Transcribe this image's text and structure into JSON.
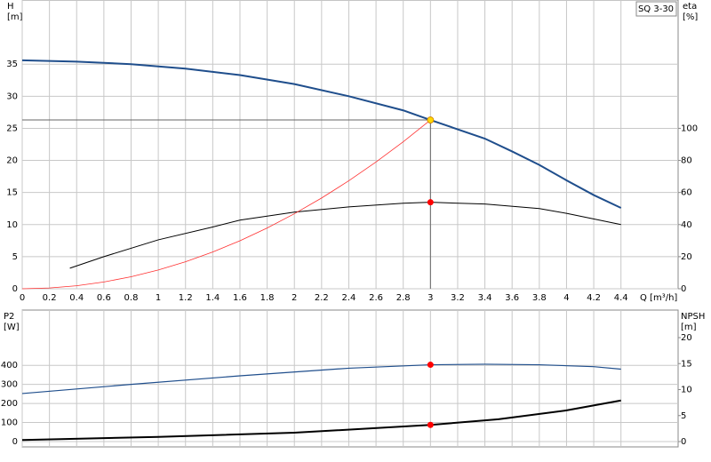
{
  "chart_data": [
    {
      "type": "line",
      "ylabel": "H",
      "yunit": "[m]",
      "y2label": "eta",
      "y2unit": "[%]",
      "model": "SQ 3-30",
      "xlabel": "Q [m³/h]",
      "xlim": [
        0,
        4.82
      ],
      "xticks": [
        0,
        0.2,
        0.4,
        0.6,
        0.8,
        1.0,
        1.2,
        1.4,
        1.6,
        1.8,
        2.0,
        2.2,
        2.4,
        2.6,
        2.8,
        3.0,
        3.2,
        3.4,
        3.6,
        3.8,
        4.0,
        4.2,
        4.4
      ],
      "ylim": [
        0,
        45
      ],
      "yticks": [
        0,
        5,
        10,
        15,
        20,
        25,
        30,
        35
      ],
      "y2lim": [
        0,
        180
      ],
      "y2ticks": [
        0,
        20,
        40,
        60,
        80,
        100
      ],
      "grid": true,
      "series": [
        {
          "color": "#1f4e8c",
          "width": 2,
          "x": [
            0,
            0.4,
            0.8,
            1.2,
            1.6,
            2.0,
            2.4,
            2.8,
            3.0,
            3.4,
            3.6,
            3.8,
            4.0,
            4.2,
            4.4
          ],
          "values": [
            35.6,
            35.4,
            35.0,
            34.3,
            33.3,
            31.9,
            30.0,
            27.8,
            26.3,
            23.4,
            21.4,
            19.3,
            16.9,
            14.6,
            12.6
          ]
        },
        {
          "color": "#000000",
          "width": 1,
          "axis": "y2",
          "x": [
            0.35,
            0.6,
            1.0,
            1.4,
            1.6,
            2.0,
            2.4,
            2.8,
            3.0,
            3.4,
            3.8,
            4.0,
            4.4
          ],
          "values": [
            12.8,
            20,
            30.5,
            38.5,
            42.8,
            47.8,
            51,
            53.3,
            53.9,
            52.8,
            50,
            47,
            40
          ]
        },
        {
          "color": "#ff3030",
          "width": 0.8,
          "x": [
            0,
            0.2,
            0.4,
            0.6,
            0.8,
            1.0,
            1.2,
            1.4,
            1.6,
            1.8,
            2.0,
            2.2,
            2.4,
            2.6,
            2.8,
            3.0
          ],
          "values": [
            0,
            0.12,
            0.47,
            1.05,
            1.87,
            2.92,
            4.21,
            5.73,
            7.48,
            9.47,
            11.69,
            14.14,
            16.83,
            19.75,
            22.91,
            26.3
          ]
        }
      ],
      "markers": [
        {
          "color": "#ffd700",
          "axis": "y",
          "x": 3.0,
          "y": 26.3,
          "guides": true
        },
        {
          "color": "#ff0000",
          "axis": "y2",
          "x": 3.0,
          "y": 53.9
        }
      ]
    },
    {
      "type": "line",
      "ylabel": "P2",
      "yunit": "[W]",
      "y2label": "NPSH",
      "y2unit": "[m]",
      "xlim": [
        0,
        4.82
      ],
      "xticks": [
        0,
        0.2,
        0.4,
        0.6,
        0.8,
        1.0,
        1.2,
        1.4,
        1.6,
        1.8,
        2.0,
        2.2,
        2.4,
        2.6,
        2.8,
        3.0,
        3.2,
        3.4,
        3.6,
        3.8,
        4.0,
        4.2,
        4.4
      ],
      "ylim": [
        0,
        690
      ],
      "yticks": [
        0,
        100,
        200,
        300,
        400
      ],
      "y2lim": [
        0,
        25.3
      ],
      "y2ticks": [
        0,
        5,
        10,
        15,
        20
      ],
      "grid": true,
      "series": [
        {
          "color": "#1f4e8c",
          "width": 1.2,
          "x": [
            0,
            0.8,
            1.6,
            2.4,
            3.0,
            3.4,
            3.8,
            4.2,
            4.4
          ],
          "values": [
            252,
            300,
            345,
            385,
            403,
            406,
            403,
            393,
            380
          ]
        },
        {
          "color": "#000000",
          "width": 2,
          "axis": "y2",
          "x": [
            0,
            1.0,
            2.0,
            3.0,
            3.5,
            4.0,
            4.4
          ],
          "values": [
            0.3,
            0.9,
            1.7,
            3.2,
            4.3,
            6.0,
            7.9
          ]
        }
      ],
      "markers": [
        {
          "color": "#ff0000",
          "axis": "y",
          "x": 3.0,
          "y": 403
        },
        {
          "color": "#ff0000",
          "axis": "y2",
          "x": 3.0,
          "y": 3.2
        }
      ]
    }
  ]
}
